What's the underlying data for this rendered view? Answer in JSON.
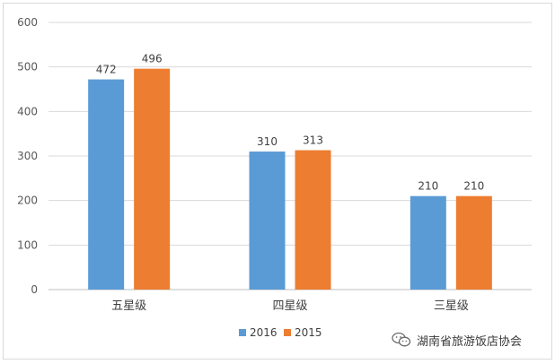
{
  "chart_data": {
    "type": "bar",
    "categories": [
      "五星级",
      "四星级",
      "三星级"
    ],
    "series": [
      {
        "name": "2016",
        "values": [
          472,
          310,
          210
        ],
        "color": "#5b9bd5"
      },
      {
        "name": "2015",
        "values": [
          496,
          313,
          210
        ],
        "color": "#ed7d31"
      }
    ],
    "ylim": [
      0,
      600
    ],
    "yticks": [
      0,
      100,
      200,
      300,
      400,
      500,
      600
    ],
    "grid": true,
    "legend": "bottom"
  },
  "watermark": {
    "text": "湖南省旅游饭店协会",
    "icon": "wechat-icon"
  }
}
